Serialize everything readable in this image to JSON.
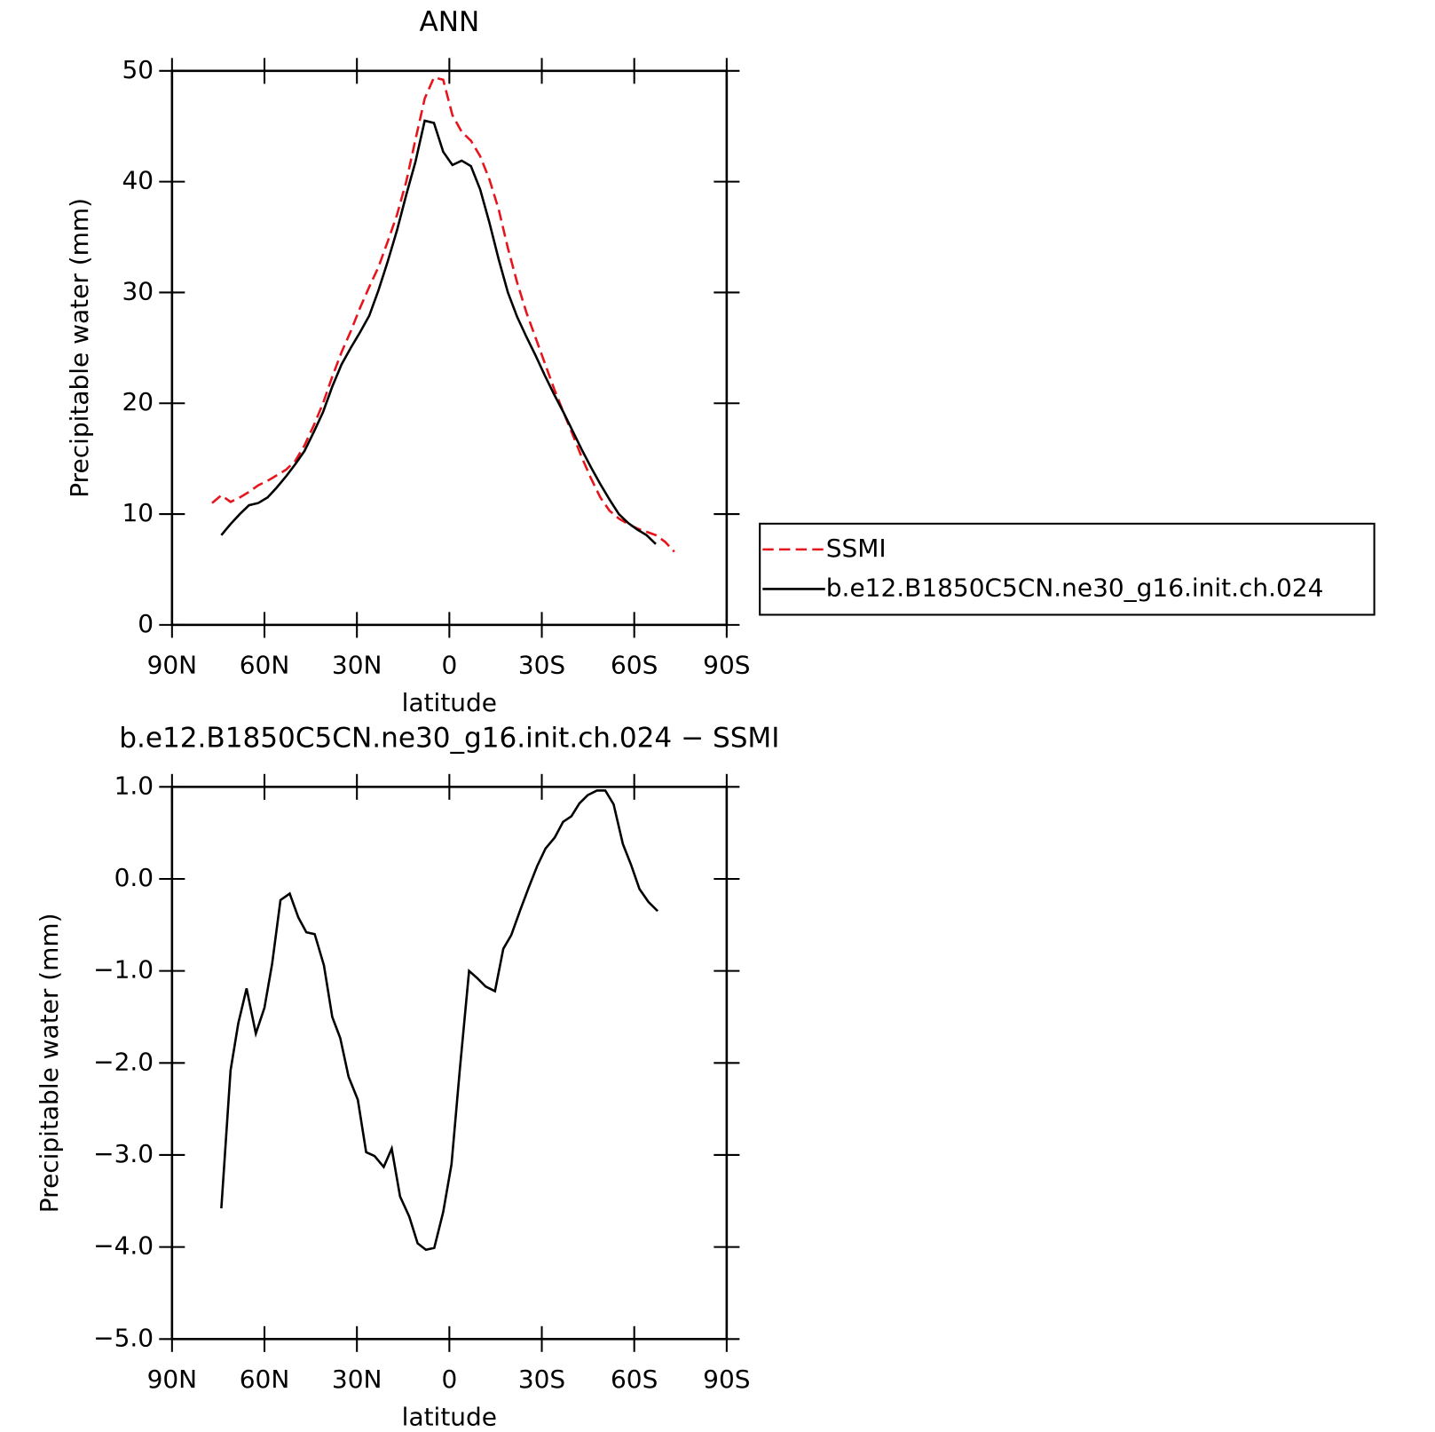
{
  "chart_data": [
    {
      "type": "line",
      "title": "ANN",
      "xlabel": "latitude",
      "ylabel": "Precipitable water (mm)",
      "x": [
        77,
        74,
        71,
        68,
        65,
        62,
        59,
        56,
        53,
        50,
        47,
        44,
        41,
        38,
        35,
        32,
        29,
        26,
        23,
        20,
        17,
        14,
        11,
        8,
        5,
        2,
        -1,
        -4,
        -7,
        -10,
        -13,
        -16,
        -19,
        -22,
        -25,
        -28,
        -31,
        -34,
        -37,
        -40,
        -43,
        -46,
        -49,
        -52,
        -55,
        -58,
        -61,
        -64,
        -67,
        -70,
        -73
      ],
      "series": [
        {
          "name": "SSMI",
          "color": "#e8141c",
          "style": "dashed",
          "values": [
            11.0,
            11.7,
            11.1,
            11.5,
            12.0,
            12.6,
            13.0,
            13.5,
            14.0,
            14.8,
            16.2,
            18.0,
            20.0,
            22.4,
            24.6,
            26.5,
            28.6,
            30.5,
            32.3,
            34.6,
            37.0,
            40.0,
            43.8,
            47.5,
            49.4,
            49.2,
            46.0,
            44.5,
            43.7,
            42.3,
            40.2,
            37.5,
            34.0,
            30.9,
            28.2,
            25.9,
            23.6,
            21.3,
            19.2,
            17.2,
            15.1,
            13.2,
            11.5,
            10.3,
            9.6,
            9.1,
            8.7,
            8.4,
            8.1,
            7.5,
            6.6
          ]
        },
        {
          "name": "b.e12.B1850C5CN.ne30_g16.init.ch.024",
          "color": "#000000",
          "style": "solid",
          "values": [
            null,
            8.1,
            9.1,
            10.0,
            10.8,
            11.0,
            11.5,
            12.4,
            13.4,
            14.5,
            15.7,
            17.4,
            19.2,
            21.5,
            23.5,
            25.0,
            26.4,
            27.9,
            30.2,
            32.8,
            35.6,
            38.8,
            41.8,
            45.5,
            45.3,
            42.7,
            41.5,
            41.9,
            41.4,
            39.3,
            36.3,
            33.0,
            30.0,
            27.8,
            26.0,
            24.3,
            22.5,
            20.8,
            19.2,
            17.5,
            15.8,
            14.2,
            12.7,
            11.3,
            10.0,
            9.2,
            8.6,
            8.1,
            7.3,
            null,
            null
          ]
        }
      ],
      "xlim": [
        90,
        -90
      ],
      "xticks": [
        {
          "value": 90,
          "label": "90N"
        },
        {
          "value": 60,
          "label": "60N"
        },
        {
          "value": 30,
          "label": "30N"
        },
        0,
        {
          "value": -30,
          "label": "30S"
        },
        {
          "value": -60,
          "label": "60S"
        },
        {
          "value": -90,
          "label": "90S"
        }
      ],
      "ylim": [
        0,
        50
      ],
      "yticks": [
        0,
        10,
        20,
        30,
        40,
        50
      ],
      "legend": "right"
    },
    {
      "type": "line",
      "title": "b.e12.B1850C5CN.ne30_g16.init.ch.024 − SSMI",
      "xlabel": "latitude",
      "ylabel": "Precipitable water (mm)",
      "x": [
        74,
        71,
        68.5,
        65.8,
        62.8,
        60,
        57.5,
        54.8,
        51.8,
        49,
        46.4,
        43.7,
        40.7,
        38,
        35.4,
        32.7,
        29.7,
        27,
        24.3,
        21.3,
        18.7,
        16,
        13,
        10.3,
        7.6,
        4.9,
        2,
        -0.7,
        -3.4,
        -6.4,
        -9.1,
        -11.8,
        -14.8,
        -17.5,
        -20.1,
        -23.1,
        -25.8,
        -28.5,
        -31.2,
        -34.2,
        -36.9,
        -39.6,
        -42.2,
        -44.9,
        -47.9,
        -50.6,
        -53.3,
        -56.3,
        -59,
        -61.7,
        -64.6,
        -67.6
      ],
      "values": [
        -3.58,
        -2.08,
        -1.57,
        -1.19,
        -1.68,
        -1.4,
        -0.92,
        -0.23,
        -0.16,
        -0.42,
        -0.58,
        -0.6,
        -0.94,
        -1.5,
        -1.73,
        -2.15,
        -2.4,
        -2.97,
        -3.01,
        -3.13,
        -2.93,
        -3.45,
        -3.67,
        -3.96,
        -4.03,
        -4.01,
        -3.62,
        -3.1,
        -2.07,
        -1.0,
        -1.08,
        -1.17,
        -1.22,
        -0.76,
        -0.61,
        -0.33,
        -0.09,
        0.14,
        0.33,
        0.45,
        0.62,
        0.68,
        0.82,
        0.91,
        0.96,
        0.96,
        0.81,
        0.38,
        0.15,
        -0.11,
        -0.25,
        -0.35
      ],
      "color": "#000000",
      "xlim": [
        90,
        -90
      ],
      "xticks": [
        {
          "value": 90,
          "label": "90N"
        },
        {
          "value": 60,
          "label": "60N"
        },
        {
          "value": 30,
          "label": "30N"
        },
        0,
        {
          "value": -30,
          "label": "30S"
        },
        {
          "value": -60,
          "label": "60S"
        },
        {
          "value": -90,
          "label": "90S"
        }
      ],
      "ylim": [
        -5,
        1
      ],
      "yticks": [
        {
          "value": 1,
          "label": "1.0"
        },
        {
          "value": 0,
          "label": "0.0"
        },
        {
          "value": -1,
          "label": "−1.0"
        },
        {
          "value": -2,
          "label": "−2.0"
        },
        {
          "value": -3,
          "label": "−3.0"
        },
        {
          "value": -4,
          "label": "−4.0"
        },
        {
          "value": -5,
          "label": "−5.0"
        }
      ]
    }
  ]
}
